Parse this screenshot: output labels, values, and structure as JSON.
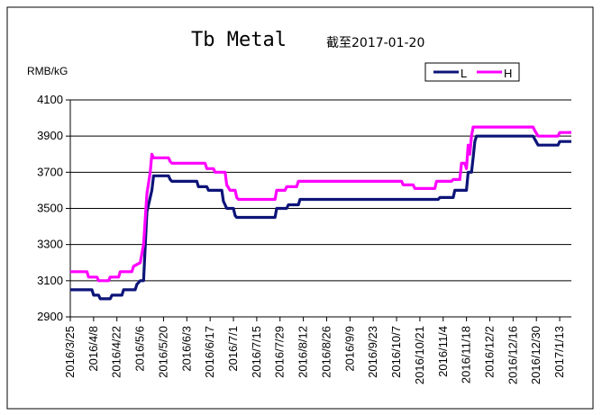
{
  "chart_data": {
    "type": "line",
    "title": "Tb Metal",
    "subtitle": "截至2017-01-20",
    "ylabel": "RMB/kG",
    "xlabel": "",
    "ylim": [
      2900,
      4100
    ],
    "yticks": [
      2900,
      3100,
      3300,
      3500,
      3700,
      3900,
      4100
    ],
    "xlim": [
      "2016-03-25",
      "2017-01-20"
    ],
    "xticks": [
      "2016/3/25",
      "2016/4/8",
      "2016/4/22",
      "2016/5/6",
      "2016/5/20",
      "2016/6/3",
      "2016/6/17",
      "2016/7/1",
      "2016/7/15",
      "2016/7/29",
      "2016/8/12",
      "2016/8/26",
      "2016/9/9",
      "2016/9/23",
      "2016/10/7",
      "2016/10/21",
      "2016/11/4",
      "2016/11/18",
      "2016/12/2",
      "2016/12/16",
      "2016/12/30",
      "2017/1/13"
    ],
    "grid": "horizontal",
    "legend_position": "top-right",
    "series": [
      {
        "name": "L",
        "color": "#0d1478",
        "points": [
          [
            "2016-03-25",
            3050
          ],
          [
            "2016-04-07",
            3050
          ],
          [
            "2016-04-08",
            3020
          ],
          [
            "2016-04-11",
            3020
          ],
          [
            "2016-04-12",
            3000
          ],
          [
            "2016-04-18",
            3000
          ],
          [
            "2016-04-19",
            3020
          ],
          [
            "2016-04-25",
            3020
          ],
          [
            "2016-04-26",
            3050
          ],
          [
            "2016-05-03",
            3050
          ],
          [
            "2016-05-04",
            3080
          ],
          [
            "2016-05-06",
            3100
          ],
          [
            "2016-05-08",
            3100
          ],
          [
            "2016-05-10",
            3480
          ],
          [
            "2016-05-13",
            3600
          ],
          [
            "2016-05-14",
            3680
          ],
          [
            "2016-05-23",
            3680
          ],
          [
            "2016-05-24",
            3660
          ],
          [
            "2016-05-25",
            3650
          ],
          [
            "2016-06-09",
            3650
          ],
          [
            "2016-06-10",
            3620
          ],
          [
            "2016-06-15",
            3620
          ],
          [
            "2016-06-16",
            3600
          ],
          [
            "2016-06-24",
            3600
          ],
          [
            "2016-06-25",
            3540
          ],
          [
            "2016-06-27",
            3500
          ],
          [
            "2016-07-01",
            3500
          ],
          [
            "2016-07-02",
            3460
          ],
          [
            "2016-07-03",
            3450
          ],
          [
            "2016-07-26",
            3450
          ],
          [
            "2016-07-27",
            3500
          ],
          [
            "2016-08-02",
            3500
          ],
          [
            "2016-08-03",
            3520
          ],
          [
            "2016-08-09",
            3520
          ],
          [
            "2016-08-10",
            3550
          ],
          [
            "2016-11-01",
            3550
          ],
          [
            "2016-11-02",
            3560
          ],
          [
            "2016-11-10",
            3560
          ],
          [
            "2016-11-11",
            3600
          ],
          [
            "2016-11-18",
            3600
          ],
          [
            "2016-11-19",
            3700
          ],
          [
            "2016-11-21",
            3700
          ],
          [
            "2016-11-22",
            3780
          ],
          [
            "2016-11-23",
            3870
          ],
          [
            "2016-11-24",
            3900
          ],
          [
            "2016-12-28",
            3900
          ],
          [
            "2016-12-31",
            3850
          ],
          [
            "2017-01-12",
            3850
          ],
          [
            "2017-01-13",
            3870
          ],
          [
            "2017-01-20",
            3870
          ]
        ]
      },
      {
        "name": "H",
        "color": "#ff00ff",
        "points": [
          [
            "2016-03-25",
            3150
          ],
          [
            "2016-04-04",
            3150
          ],
          [
            "2016-04-05",
            3120
          ],
          [
            "2016-04-10",
            3120
          ],
          [
            "2016-04-11",
            3100
          ],
          [
            "2016-04-17",
            3100
          ],
          [
            "2016-04-18",
            3120
          ],
          [
            "2016-04-23",
            3120
          ],
          [
            "2016-04-24",
            3150
          ],
          [
            "2016-05-01",
            3150
          ],
          [
            "2016-05-02",
            3180
          ],
          [
            "2016-05-06",
            3200
          ],
          [
            "2016-05-08",
            3300
          ],
          [
            "2016-05-10",
            3580
          ],
          [
            "2016-05-12",
            3700
          ],
          [
            "2016-05-13",
            3800
          ],
          [
            "2016-05-14",
            3780
          ],
          [
            "2016-05-23",
            3780
          ],
          [
            "2016-05-24",
            3760
          ],
          [
            "2016-05-25",
            3750
          ],
          [
            "2016-06-14",
            3750
          ],
          [
            "2016-06-15",
            3720
          ],
          [
            "2016-06-19",
            3720
          ],
          [
            "2016-06-20",
            3700
          ],
          [
            "2016-06-26",
            3700
          ],
          [
            "2016-06-27",
            3630
          ],
          [
            "2016-06-29",
            3600
          ],
          [
            "2016-07-02",
            3600
          ],
          [
            "2016-07-03",
            3560
          ],
          [
            "2016-07-04",
            3550
          ],
          [
            "2016-07-26",
            3550
          ],
          [
            "2016-07-27",
            3600
          ],
          [
            "2016-08-01",
            3600
          ],
          [
            "2016-08-02",
            3620
          ],
          [
            "2016-08-08",
            3620
          ],
          [
            "2016-08-09",
            3650
          ],
          [
            "2016-10-10",
            3650
          ],
          [
            "2016-10-11",
            3630
          ],
          [
            "2016-10-17",
            3630
          ],
          [
            "2016-10-18",
            3610
          ],
          [
            "2016-10-30",
            3610
          ],
          [
            "2016-10-31",
            3650
          ],
          [
            "2016-11-09",
            3650
          ],
          [
            "2016-11-10",
            3660
          ],
          [
            "2016-11-14",
            3660
          ],
          [
            "2016-11-15",
            3750
          ],
          [
            "2016-11-17",
            3750
          ],
          [
            "2016-11-18",
            3720
          ],
          [
            "2016-11-19",
            3850
          ],
          [
            "2016-11-20",
            3800
          ],
          [
            "2016-11-21",
            3900
          ],
          [
            "2016-11-22",
            3950
          ],
          [
            "2016-12-28",
            3950
          ],
          [
            "2016-12-29",
            3930
          ],
          [
            "2016-12-31",
            3900
          ],
          [
            "2017-01-12",
            3900
          ],
          [
            "2017-01-13",
            3920
          ],
          [
            "2017-01-20",
            3920
          ]
        ]
      }
    ]
  }
}
